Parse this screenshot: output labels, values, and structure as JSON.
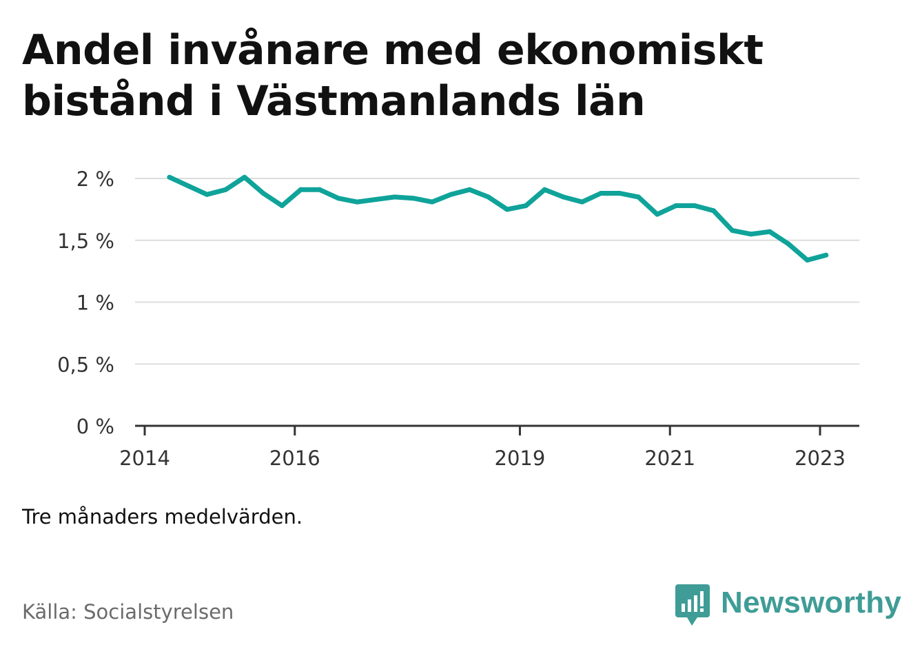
{
  "title": "Andel invånare med ekonomiskt bistånd i Västmanlands län",
  "note": "Tre månaders medelvärden.",
  "source": "Källa: Socialstyrelsen",
  "brand": {
    "name": "Newsworthy",
    "icon": "newsworthy-chart-bubble-icon",
    "color": "#3f9c96"
  },
  "colors": {
    "line": "#0fa39a",
    "grid": "#dddddd",
    "axis": "#333333"
  },
  "chart_data": {
    "type": "line",
    "title": "Andel invånare med ekonomiskt bistånd i Västmanlands län",
    "xlabel": "",
    "ylabel": "",
    "ylim": [
      0,
      2
    ],
    "y_ticks": [
      0,
      0.5,
      1,
      1.5,
      2
    ],
    "y_tick_labels": [
      "0 %",
      "0,5 %",
      "1 %",
      "1,5 %",
      "2 %"
    ],
    "x_ticks": [
      2014,
      2016,
      2019,
      2021,
      2023
    ],
    "x_tick_labels": [
      "2014",
      "2016",
      "2019",
      "2021",
      "2023"
    ],
    "xlim": [
      2014.0,
      2023.5
    ],
    "grid": true,
    "legend": "none",
    "series": [
      {
        "x": [
          2014.33,
          2014.58,
          2014.83,
          2015.08,
          2015.33,
          2015.58,
          2015.83,
          2016.08,
          2016.33,
          2016.58,
          2016.83,
          2017.08,
          2017.33,
          2017.58,
          2017.83,
          2018.08,
          2018.33,
          2018.58,
          2018.83,
          2019.08,
          2019.33,
          2019.58,
          2019.83,
          2020.08,
          2020.33,
          2020.58,
          2020.83,
          2021.08,
          2021.33,
          2021.58,
          2021.83,
          2022.08,
          2022.33,
          2022.58,
          2022.83,
          2023.08
        ],
        "values": [
          2.01,
          1.94,
          1.87,
          1.91,
          2.01,
          1.88,
          1.78,
          1.91,
          1.91,
          1.84,
          1.81,
          1.83,
          1.85,
          1.84,
          1.81,
          1.87,
          1.91,
          1.85,
          1.75,
          1.78,
          1.91,
          1.85,
          1.81,
          1.88,
          1.88,
          1.85,
          1.71,
          1.78,
          1.78,
          1.74,
          1.58,
          1.55,
          1.57,
          1.47,
          1.34,
          1.38
        ]
      }
    ]
  }
}
